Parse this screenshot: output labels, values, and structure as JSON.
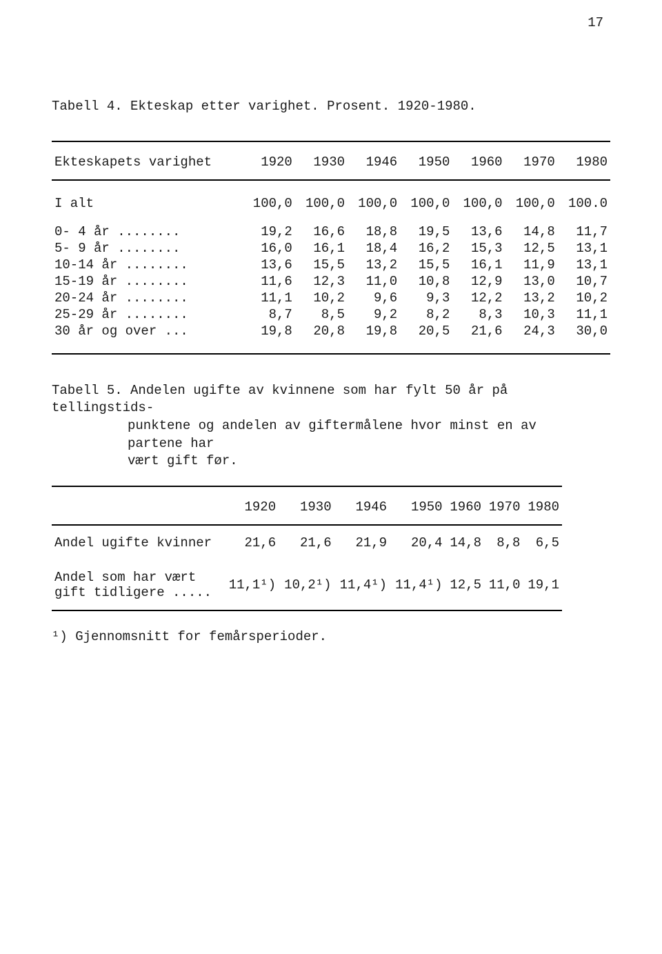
{
  "page_number": "17",
  "typography": {
    "font_family": "Courier New",
    "font_size_pt": 14,
    "color": "#1a1a1a",
    "background": "#ffffff"
  },
  "table4": {
    "type": "table",
    "caption": "Tabell 4. Ekteskap etter varighet. Prosent. 1920-1980.",
    "row_header": "Ekteskapets varighet",
    "columns": [
      "1920",
      "1930",
      "1946",
      "1950",
      "1960",
      "1970",
      "1980"
    ],
    "ialt_label": "I alt",
    "ialt_values": [
      "100,0",
      "100,0",
      "100,0",
      "100,0",
      "100,0",
      "100,0",
      "100.0"
    ],
    "rows": [
      {
        "label": " 0- 4 år ........",
        "v": [
          "19,2",
          "16,6",
          "18,8",
          "19,5",
          "13,6",
          "14,8",
          "11,7"
        ]
      },
      {
        "label": " 5- 9 år ........",
        "v": [
          "16,0",
          "16,1",
          "18,4",
          "16,2",
          "15,3",
          "12,5",
          "13,1"
        ]
      },
      {
        "label": "10-14 år ........",
        "v": [
          "13,6",
          "15,5",
          "13,2",
          "15,5",
          "16,1",
          "11,9",
          "13,1"
        ]
      },
      {
        "label": "15-19 år ........",
        "v": [
          "11,6",
          "12,3",
          "11,0",
          "10,8",
          "12,9",
          "13,0",
          "10,7"
        ]
      },
      {
        "label": "20-24 år ........",
        "v": [
          "11,1",
          "10,2",
          "9,6",
          "9,3",
          "12,2",
          "13,2",
          "10,2"
        ]
      },
      {
        "label": "25-29 år ........",
        "v": [
          "8,7",
          "8,5",
          "9,2",
          "8,2",
          "8,3",
          "10,3",
          "11,1"
        ]
      },
      {
        "label": "30 år og over ...",
        "v": [
          "19,8",
          "20,8",
          "19,8",
          "20,5",
          "21,6",
          "24,3",
          "30,0"
        ]
      }
    ],
    "rule_color": "#000000",
    "col_align": "right"
  },
  "table5": {
    "type": "table",
    "caption_line1": "Tabell 5. Andelen ugifte av kvinnene som har fylt 50  år  på  tellingstids-",
    "caption_line2": "punktene  og andelen av giftermålene hvor minst en av partene har",
    "caption_line3": "vært gift før.",
    "columns": [
      "1920",
      "1930",
      "1946",
      "1950",
      "1960",
      "1970",
      "1980"
    ],
    "rows": [
      {
        "label": "Andel ugifte kvinner",
        "v": [
          "21,6",
          "21,6",
          "21,9",
          "20,4",
          "14,8",
          "8,8",
          "6,5"
        ]
      },
      {
        "label": "Andel som har vært",
        "label2": "gift tidligere .....",
        "v": [
          "11,1¹)",
          "10,2¹)",
          "11,4¹)",
          "11,4¹)",
          "12,5",
          "11,0",
          "19,1"
        ]
      }
    ],
    "rule_color": "#000000"
  },
  "footnote": "¹) Gjennomsnitt for femårsperioder."
}
